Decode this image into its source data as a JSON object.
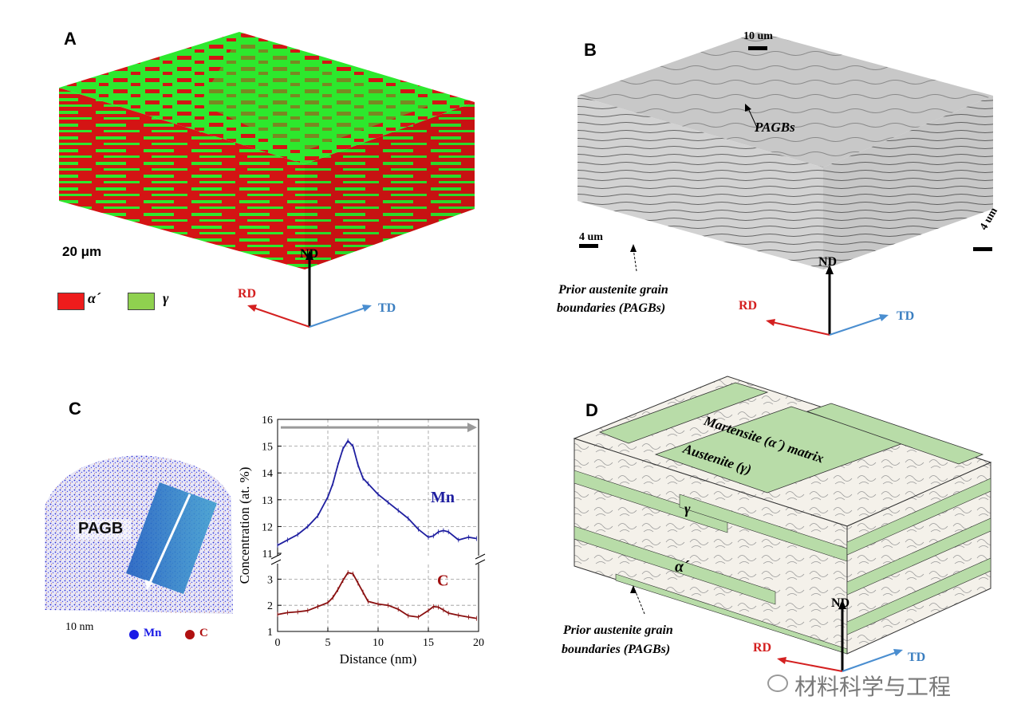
{
  "panels": {
    "a": "A",
    "b": "B",
    "c": "C",
    "d": "D"
  },
  "panel_a": {
    "scalebar": "20 μm",
    "legend": [
      {
        "symbol": "α´",
        "color": "#ee1c1c"
      },
      {
        "symbol": "γ",
        "color": "#8fd14f"
      }
    ],
    "axes": {
      "nd": "ND",
      "rd": "RD",
      "td": "TD"
    },
    "colors": {
      "martensite": "#d41414",
      "austenite": "#2ee82e",
      "rd": "#d42020",
      "td": "#4a8ed0"
    }
  },
  "panel_b": {
    "scalebar_top": "10 um",
    "scalebar_left": "4 um",
    "scalebar_right": "4 um",
    "label_pagbs": "PAGBs",
    "caption_line1": "Prior austenite grain",
    "caption_line2": "boundaries (PAGBs)",
    "axes": {
      "nd": "ND",
      "rd": "RD",
      "td": "TD"
    }
  },
  "panel_c": {
    "atom_map": {
      "label": "PAGB",
      "scalebar": "10 nm",
      "legend": [
        {
          "label": "Mn",
          "color": "#1a1ae6"
        },
        {
          "label": "C",
          "color": "#b01010"
        }
      ]
    }
  },
  "chart_data": {
    "type": "line",
    "xlabel": "Distance (nm)",
    "ylabel": "Concentration (at. %)",
    "xlim": [
      0,
      20
    ],
    "xticks": [
      "0",
      "5",
      "10",
      "15",
      "20"
    ],
    "upper_axis": {
      "ylim": [
        11,
        16
      ],
      "yticks": [
        "11",
        "12",
        "13",
        "14",
        "15",
        "16"
      ]
    },
    "lower_axis": {
      "ylim": [
        1,
        3.5
      ],
      "yticks": [
        "1",
        "2",
        "3"
      ]
    },
    "grid": true,
    "series": [
      {
        "name": "Mn",
        "color": "#1f1fa0",
        "x": [
          0,
          1,
          2,
          3,
          4,
          5,
          5.5,
          6,
          6.5,
          7,
          7.5,
          8,
          8.5,
          9,
          10,
          11,
          12,
          13,
          14,
          15,
          15.5,
          16,
          16.5,
          17,
          18,
          19,
          19.8
        ],
        "y": [
          11.3,
          11.5,
          11.7,
          12.0,
          12.4,
          13.1,
          13.6,
          14.3,
          14.9,
          15.2,
          15.0,
          14.3,
          13.8,
          13.6,
          13.2,
          12.9,
          12.6,
          12.3,
          11.9,
          11.6,
          11.65,
          11.8,
          11.85,
          11.8,
          11.5,
          11.6,
          11.55
        ]
      },
      {
        "name": "C",
        "color": "#8a1010",
        "x": [
          0,
          1,
          2,
          3,
          4,
          5,
          5.5,
          6,
          6.5,
          7,
          7.5,
          8,
          8.5,
          9,
          10,
          11,
          12,
          13,
          14,
          15,
          15.5,
          16,
          16.5,
          17,
          18,
          19,
          19.8
        ],
        "y": [
          1.65,
          1.72,
          1.75,
          1.8,
          1.95,
          2.1,
          2.3,
          2.6,
          2.95,
          3.25,
          3.2,
          2.85,
          2.5,
          2.15,
          2.05,
          2.0,
          1.85,
          1.6,
          1.55,
          1.8,
          1.95,
          1.93,
          1.82,
          1.7,
          1.62,
          1.55,
          1.5
        ]
      }
    ],
    "annotation_arrow": "gray arrow at top pointing right"
  },
  "panel_d": {
    "label_matrix": "Martensite (α´) matrix",
    "label_austenite": "Austenite (γ)",
    "label_gamma": "γ",
    "label_alpha": "α´",
    "caption_line1": "Prior austenite grain",
    "caption_line2": "boundaries (PAGBs)",
    "axes": {
      "nd": "ND",
      "rd": "RD",
      "td": "TD"
    },
    "colors": {
      "austenite": "#b8dca8",
      "matrix": "#f4f1ea"
    }
  },
  "watermark": "材料科学与工程"
}
